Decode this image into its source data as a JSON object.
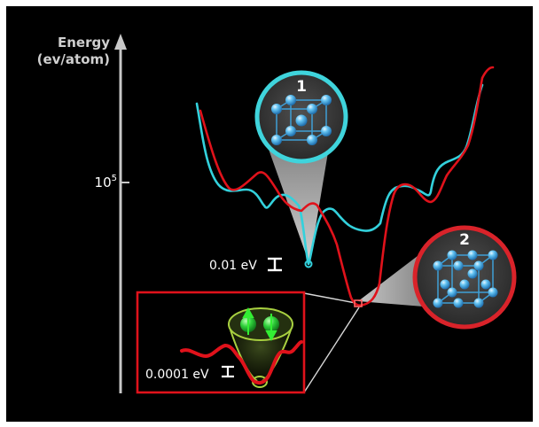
{
  "axis": {
    "title_line1": "Energy",
    "title_line2": "(ev/atom)",
    "tick_base": "10",
    "tick_exp": "5"
  },
  "annotations": {
    "gap_main": "0.01 eV",
    "gap_inset": "0.0001 eV"
  },
  "badges": {
    "structure_1": "1",
    "structure_2": "2"
  },
  "colors": {
    "background": "#000000",
    "axis": "#c8c8c8",
    "curve_cyan": "#33d1dc",
    "curve_red": "#e0121b",
    "badge_1_ring": "#3fd4dc",
    "badge_2_ring": "#d9232a",
    "atom": "#4fb3e8",
    "spin_atom": "#33cc33",
    "spin_cone": "#a8d040"
  }
}
